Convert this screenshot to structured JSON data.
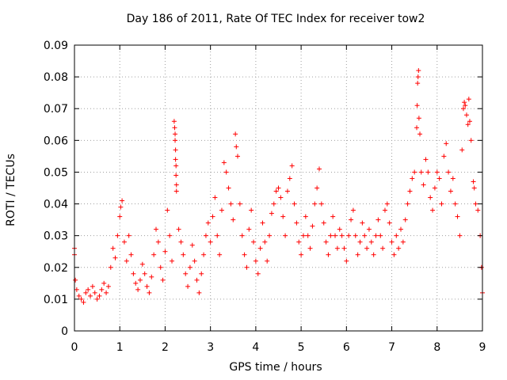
{
  "chart_data": {
    "type": "scatter",
    "title": "Day 186 of 2011, Rate Of TEC Index for receiver tow2",
    "xlabel": "GPS time / hours",
    "ylabel": "ROTI / TECUs",
    "xlim": [
      0,
      9
    ],
    "ylim": [
      0,
      0.09
    ],
    "x_ticks": [
      "0",
      "1",
      "2",
      "3",
      "4",
      "5",
      "6",
      "7",
      "8",
      "9"
    ],
    "y_ticks": [
      "0",
      "0.01",
      "0.02",
      "0.03",
      "0.04",
      "0.05",
      "0.06",
      "0.07",
      "0.08",
      "0.09"
    ],
    "grid": true,
    "marker": "+",
    "color": "#ff0000",
    "series": [
      {
        "name": "ROTI",
        "points": [
          [
            0.0,
            0.026
          ],
          [
            0.0,
            0.024
          ],
          [
            0.02,
            0.016
          ],
          [
            0.05,
            0.013
          ],
          [
            0.1,
            0.011
          ],
          [
            0.15,
            0.01
          ],
          [
            0.2,
            0.009
          ],
          [
            0.25,
            0.012
          ],
          [
            0.3,
            0.013
          ],
          [
            0.35,
            0.011
          ],
          [
            0.4,
            0.014
          ],
          [
            0.45,
            0.012
          ],
          [
            0.5,
            0.01
          ],
          [
            0.55,
            0.011
          ],
          [
            0.6,
            0.013
          ],
          [
            0.65,
            0.015
          ],
          [
            0.7,
            0.012
          ],
          [
            0.75,
            0.014
          ],
          [
            0.8,
            0.02
          ],
          [
            0.85,
            0.026
          ],
          [
            0.9,
            0.023
          ],
          [
            0.95,
            0.03
          ],
          [
            1.0,
            0.036
          ],
          [
            1.02,
            0.039
          ],
          [
            1.05,
            0.041
          ],
          [
            1.1,
            0.028
          ],
          [
            1.15,
            0.022
          ],
          [
            1.2,
            0.03
          ],
          [
            1.25,
            0.024
          ],
          [
            1.3,
            0.018
          ],
          [
            1.35,
            0.015
          ],
          [
            1.4,
            0.013
          ],
          [
            1.45,
            0.016
          ],
          [
            1.5,
            0.021
          ],
          [
            1.55,
            0.018
          ],
          [
            1.6,
            0.014
          ],
          [
            1.65,
            0.012
          ],
          [
            1.7,
            0.017
          ],
          [
            1.75,
            0.024
          ],
          [
            1.8,
            0.032
          ],
          [
            1.85,
            0.028
          ],
          [
            1.9,
            0.02
          ],
          [
            1.95,
            0.016
          ],
          [
            2.0,
            0.025
          ],
          [
            2.05,
            0.038
          ],
          [
            2.1,
            0.03
          ],
          [
            2.15,
            0.022
          ],
          [
            2.2,
            0.066
          ],
          [
            2.21,
            0.064
          ],
          [
            2.22,
            0.062
          ],
          [
            2.22,
            0.06
          ],
          [
            2.23,
            0.057
          ],
          [
            2.23,
            0.054
          ],
          [
            2.24,
            0.052
          ],
          [
            2.24,
            0.049
          ],
          [
            2.25,
            0.046
          ],
          [
            2.25,
            0.044
          ],
          [
            2.3,
            0.032
          ],
          [
            2.35,
            0.028
          ],
          [
            2.4,
            0.024
          ],
          [
            2.45,
            0.018
          ],
          [
            2.5,
            0.014
          ],
          [
            2.55,
            0.02
          ],
          [
            2.6,
            0.027
          ],
          [
            2.65,
            0.022
          ],
          [
            2.7,
            0.016
          ],
          [
            2.75,
            0.012
          ],
          [
            2.8,
            0.018
          ],
          [
            2.85,
            0.024
          ],
          [
            2.9,
            0.03
          ],
          [
            2.95,
            0.034
          ],
          [
            3.0,
            0.028
          ],
          [
            3.05,
            0.036
          ],
          [
            3.1,
            0.042
          ],
          [
            3.15,
            0.03
          ],
          [
            3.2,
            0.024
          ],
          [
            3.25,
            0.038
          ],
          [
            3.3,
            0.053
          ],
          [
            3.35,
            0.05
          ],
          [
            3.4,
            0.045
          ],
          [
            3.45,
            0.04
          ],
          [
            3.5,
            0.035
          ],
          [
            3.55,
            0.062
          ],
          [
            3.57,
            0.058
          ],
          [
            3.6,
            0.055
          ],
          [
            3.65,
            0.04
          ],
          [
            3.7,
            0.03
          ],
          [
            3.75,
            0.024
          ],
          [
            3.8,
            0.02
          ],
          [
            3.85,
            0.032
          ],
          [
            3.9,
            0.038
          ],
          [
            3.95,
            0.028
          ],
          [
            4.0,
            0.022
          ],
          [
            4.05,
            0.018
          ],
          [
            4.1,
            0.026
          ],
          [
            4.15,
            0.034
          ],
          [
            4.2,
            0.028
          ],
          [
            4.25,
            0.022
          ],
          [
            4.3,
            0.03
          ],
          [
            4.35,
            0.037
          ],
          [
            4.4,
            0.04
          ],
          [
            4.45,
            0.044
          ],
          [
            4.5,
            0.045
          ],
          [
            4.55,
            0.042
          ],
          [
            4.6,
            0.036
          ],
          [
            4.65,
            0.03
          ],
          [
            4.7,
            0.044
          ],
          [
            4.75,
            0.048
          ],
          [
            4.8,
            0.052
          ],
          [
            4.85,
            0.04
          ],
          [
            4.9,
            0.034
          ],
          [
            4.95,
            0.028
          ],
          [
            5.0,
            0.024
          ],
          [
            5.05,
            0.03
          ],
          [
            5.1,
            0.036
          ],
          [
            5.15,
            0.03
          ],
          [
            5.2,
            0.026
          ],
          [
            5.25,
            0.033
          ],
          [
            5.3,
            0.04
          ],
          [
            5.35,
            0.045
          ],
          [
            5.4,
            0.051
          ],
          [
            5.45,
            0.04
          ],
          [
            5.5,
            0.034
          ],
          [
            5.55,
            0.028
          ],
          [
            5.6,
            0.024
          ],
          [
            5.65,
            0.03
          ],
          [
            5.7,
            0.036
          ],
          [
            5.75,
            0.03
          ],
          [
            5.8,
            0.026
          ],
          [
            5.85,
            0.032
          ],
          [
            5.9,
            0.03
          ],
          [
            5.95,
            0.026
          ],
          [
            6.0,
            0.022
          ],
          [
            6.05,
            0.03
          ],
          [
            6.1,
            0.035
          ],
          [
            6.15,
            0.038
          ],
          [
            6.2,
            0.03
          ],
          [
            6.25,
            0.024
          ],
          [
            6.3,
            0.028
          ],
          [
            6.35,
            0.034
          ],
          [
            6.4,
            0.03
          ],
          [
            6.45,
            0.026
          ],
          [
            6.5,
            0.032
          ],
          [
            6.55,
            0.028
          ],
          [
            6.6,
            0.024
          ],
          [
            6.65,
            0.03
          ],
          [
            6.7,
            0.035
          ],
          [
            6.75,
            0.03
          ],
          [
            6.8,
            0.026
          ],
          [
            6.85,
            0.038
          ],
          [
            6.9,
            0.04
          ],
          [
            6.95,
            0.034
          ],
          [
            7.0,
            0.028
          ],
          [
            7.05,
            0.024
          ],
          [
            7.1,
            0.03
          ],
          [
            7.15,
            0.026
          ],
          [
            7.2,
            0.032
          ],
          [
            7.25,
            0.028
          ],
          [
            7.3,
            0.035
          ],
          [
            7.35,
            0.04
          ],
          [
            7.4,
            0.044
          ],
          [
            7.45,
            0.048
          ],
          [
            7.5,
            0.05
          ],
          [
            7.55,
            0.064
          ],
          [
            7.56,
            0.071
          ],
          [
            7.57,
            0.078
          ],
          [
            7.58,
            0.08
          ],
          [
            7.59,
            0.082
          ],
          [
            7.6,
            0.067
          ],
          [
            7.62,
            0.062
          ],
          [
            7.65,
            0.05
          ],
          [
            7.7,
            0.046
          ],
          [
            7.75,
            0.054
          ],
          [
            7.8,
            0.05
          ],
          [
            7.85,
            0.042
          ],
          [
            7.9,
            0.038
          ],
          [
            7.95,
            0.045
          ],
          [
            8.0,
            0.05
          ],
          [
            8.05,
            0.048
          ],
          [
            8.1,
            0.04
          ],
          [
            8.15,
            0.055
          ],
          [
            8.2,
            0.059
          ],
          [
            8.25,
            0.05
          ],
          [
            8.3,
            0.044
          ],
          [
            8.35,
            0.048
          ],
          [
            8.4,
            0.04
          ],
          [
            8.45,
            0.036
          ],
          [
            8.5,
            0.03
          ],
          [
            8.55,
            0.057
          ],
          [
            8.58,
            0.07
          ],
          [
            8.6,
            0.072
          ],
          [
            8.62,
            0.071
          ],
          [
            8.65,
            0.068
          ],
          [
            8.68,
            0.065
          ],
          [
            8.7,
            0.073
          ],
          [
            8.72,
            0.066
          ],
          [
            8.75,
            0.06
          ],
          [
            8.8,
            0.047
          ],
          [
            8.82,
            0.045
          ],
          [
            8.85,
            0.04
          ],
          [
            8.9,
            0.038
          ],
          [
            8.95,
            0.03
          ],
          [
            8.98,
            0.02
          ],
          [
            9.0,
            0.012
          ]
        ]
      }
    ]
  }
}
